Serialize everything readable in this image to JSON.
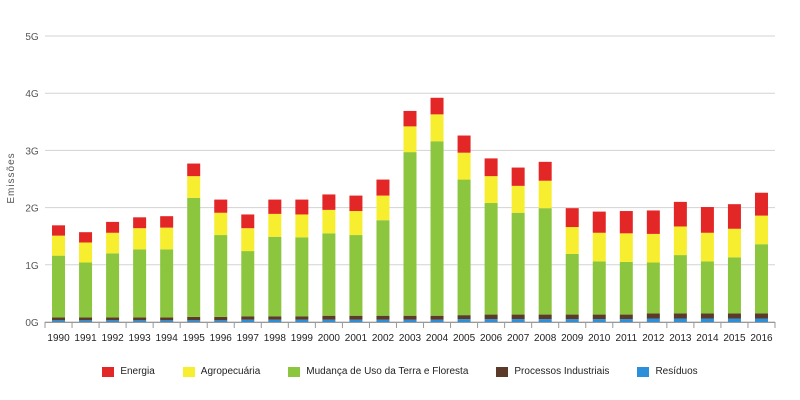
{
  "chart_data": {
    "type": "bar",
    "stacked": true,
    "ylabel": "Emissões",
    "y_ticks": [
      "0G",
      "1G",
      "2G",
      "3G",
      "4G",
      "5G"
    ],
    "ylim": [
      0,
      5
    ],
    "grid": true,
    "legend_position": "bottom",
    "categories": [
      "1990",
      "1991",
      "1992",
      "1993",
      "1994",
      "1995",
      "1996",
      "1997",
      "1998",
      "1999",
      "2000",
      "2001",
      "2002",
      "2003",
      "2004",
      "2005",
      "2006",
      "2007",
      "2008",
      "2009",
      "2010",
      "2011",
      "2012",
      "2013",
      "2014",
      "2015",
      "2016"
    ],
    "series": [
      {
        "name": "Resíduos",
        "color": "#2b8fd9",
        "values": [
          0.03,
          0.03,
          0.03,
          0.03,
          0.03,
          0.03,
          0.03,
          0.04,
          0.04,
          0.04,
          0.04,
          0.04,
          0.04,
          0.04,
          0.04,
          0.05,
          0.05,
          0.05,
          0.05,
          0.05,
          0.05,
          0.05,
          0.06,
          0.06,
          0.06,
          0.06,
          0.06
        ]
      },
      {
        "name": "Processos Industriais",
        "color": "#5b3a29",
        "values": [
          0.05,
          0.05,
          0.05,
          0.05,
          0.05,
          0.06,
          0.06,
          0.06,
          0.06,
          0.06,
          0.07,
          0.07,
          0.07,
          0.07,
          0.07,
          0.07,
          0.08,
          0.08,
          0.08,
          0.08,
          0.08,
          0.08,
          0.09,
          0.09,
          0.09,
          0.09,
          0.09
        ]
      },
      {
        "name": "Mudança de Uso da Terra e Floresta",
        "color": "#8cc63f",
        "values": [
          1.08,
          0.96,
          1.12,
          1.19,
          1.19,
          2.08,
          1.43,
          1.14,
          1.39,
          1.38,
          1.44,
          1.41,
          1.67,
          2.86,
          3.05,
          2.37,
          1.95,
          1.78,
          1.86,
          1.06,
          0.93,
          0.92,
          0.89,
          1.02,
          0.91,
          0.98,
          1.21
        ]
      },
      {
        "name": "Agropecuária",
        "color": "#f7ee2f",
        "values": [
          0.35,
          0.35,
          0.36,
          0.37,
          0.38,
          0.38,
          0.39,
          0.4,
          0.4,
          0.4,
          0.41,
          0.42,
          0.43,
          0.45,
          0.47,
          0.47,
          0.47,
          0.47,
          0.48,
          0.47,
          0.5,
          0.5,
          0.5,
          0.5,
          0.5,
          0.5,
          0.5
        ]
      },
      {
        "name": "Energia",
        "color": "#e32727",
        "values": [
          0.18,
          0.18,
          0.19,
          0.19,
          0.2,
          0.22,
          0.23,
          0.24,
          0.25,
          0.26,
          0.27,
          0.27,
          0.28,
          0.27,
          0.29,
          0.3,
          0.31,
          0.32,
          0.33,
          0.33,
          0.37,
          0.39,
          0.41,
          0.43,
          0.45,
          0.43,
          0.4
        ]
      }
    ],
    "legend_order": [
      "Energia",
      "Agropecuária",
      "Mudança de Uso da Terra e Floresta",
      "Processos Industriais",
      "Resíduos"
    ]
  }
}
